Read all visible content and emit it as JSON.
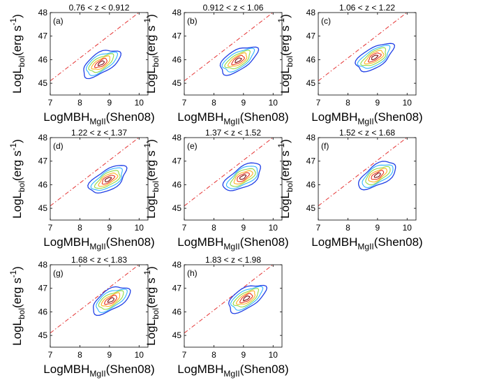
{
  "chart_data": {
    "type": "contour",
    "xlabel": {
      "main": "LogMBH",
      "sub": "MgII",
      "suffix": "(Shen08)"
    },
    "ylabel": {
      "main": "LogL",
      "sub": "bol",
      "suffix": "(erg s",
      "sup": "-1",
      "close": ")"
    },
    "xlim": [
      7,
      10.3
    ],
    "ylim": [
      44.5,
      48
    ],
    "xticks": [
      "7",
      "8",
      "9",
      "10"
    ],
    "yticks": [
      "45",
      "46",
      "47",
      "48"
    ],
    "reference_line": {
      "style": "dash-dot",
      "color": "#e53333",
      "x": [
        7,
        10.3
      ],
      "y": [
        45.1,
        48.3
      ]
    },
    "contour_colors": [
      "#1f3fe6",
      "#2fb3ff",
      "#8fdc46",
      "#ffb020",
      "#e8331e",
      "#7a0a0a"
    ],
    "panels": [
      {
        "tag": "(a)",
        "title": "0.76 < z < 0.912",
        "center": [
          8.72,
          45.85
        ]
      },
      {
        "tag": "(b)",
        "title": "0.912 < z < 1.06",
        "center": [
          8.82,
          45.98
        ]
      },
      {
        "tag": "(c)",
        "title": "1.06 < z < 1.22",
        "center": [
          8.9,
          46.1
        ]
      },
      {
        "tag": "(d)",
        "title": "1.22 < z < 1.37",
        "center": [
          8.95,
          46.22
        ]
      },
      {
        "tag": "(e)",
        "title": "1.37 < z < 1.52",
        "center": [
          8.98,
          46.32
        ]
      },
      {
        "tag": "(f)",
        "title": "1.52 < z < 1.68",
        "center": [
          9.0,
          46.4
        ]
      },
      {
        "tag": "(g)",
        "title": "1.68 < z < 1.83",
        "center": [
          9.05,
          46.5
        ]
      },
      {
        "tag": "(h)",
        "title": "1.83 < z < 1.98",
        "center": [
          9.1,
          46.58
        ]
      }
    ]
  }
}
